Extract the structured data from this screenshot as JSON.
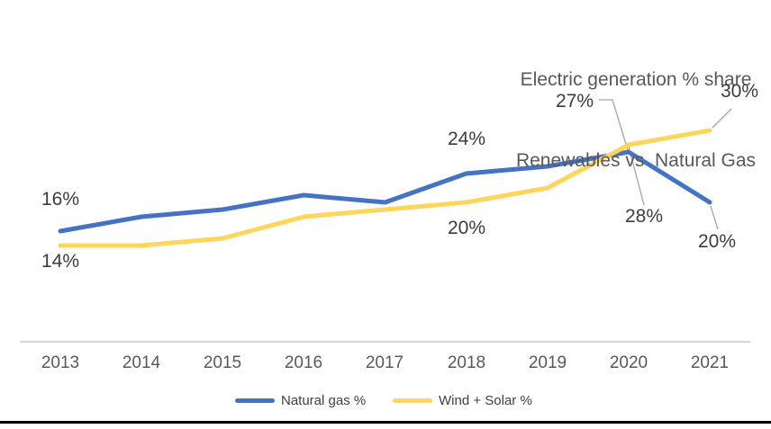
{
  "title": {
    "line1": "Electric generation % share",
    "line2": "Renewables vs  Natural Gas"
  },
  "chart_data": {
    "type": "line",
    "title": "Electric generation % share Renewables vs Natural Gas",
    "categories": [
      "2013",
      "2014",
      "2015",
      "2016",
      "2017",
      "2018",
      "2019",
      "2020",
      "2021"
    ],
    "series": [
      {
        "name": "Natural gas %",
        "color": "#4472C4",
        "values": [
          16,
          18,
          19,
          21,
          20,
          24,
          25,
          27,
          20
        ]
      },
      {
        "name": "Wind + Solar %",
        "color": "#FFD55C",
        "values": [
          14,
          14,
          15,
          18,
          19,
          20,
          22,
          28,
          30
        ]
      }
    ],
    "point_labels": [
      {
        "text": "16%",
        "series": "Natural gas %",
        "category": "2013"
      },
      {
        "text": "14%",
        "series": "Wind + Solar %",
        "category": "2013"
      },
      {
        "text": "24%",
        "series": "Natural gas %",
        "category": "2018"
      },
      {
        "text": "20%",
        "series": "Wind + Solar %",
        "category": "2018"
      },
      {
        "text": "27%",
        "series": "Natural gas %",
        "category": "2020"
      },
      {
        "text": "28%",
        "series": "Wind + Solar %",
        "category": "2020"
      },
      {
        "text": "30%",
        "series": "Wind + Solar %",
        "category": "2021"
      },
      {
        "text": "20%",
        "series": "Natural gas %",
        "category": "2021"
      }
    ],
    "legend_position": "bottom",
    "gridlines": false,
    "y_axis_visible": false,
    "x_axis_line_color": "#D6D6D6",
    "leader_line_color": "#A3A3A3",
    "ylim_estimate": [
      12,
      32
    ]
  }
}
